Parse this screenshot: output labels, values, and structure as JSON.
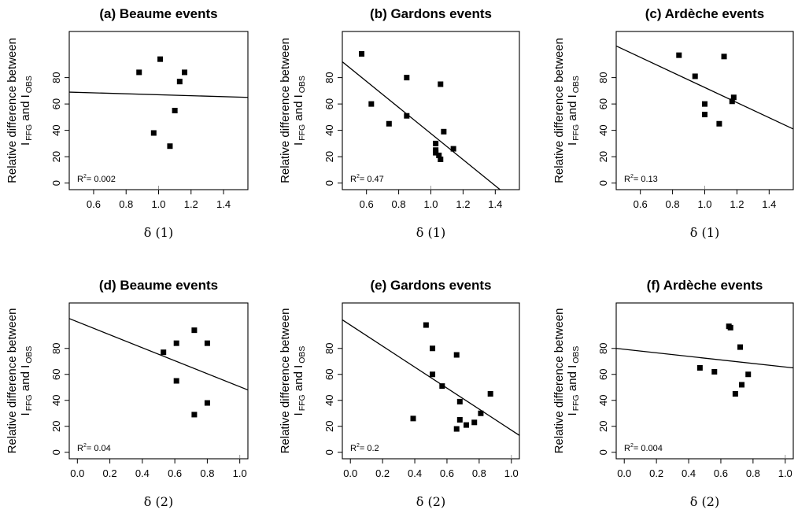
{
  "chart_data": [
    {
      "type": "scatter",
      "title": "(a) Beaume events",
      "xlabel": "δ (1)",
      "ylabel_line1": "Relative difference between",
      "ylabel_line2": {
        "I1": "I",
        "s1": "FFG",
        "and": "and",
        "I2": "I",
        "s2": "OBS"
      },
      "xlim": [
        0.45,
        1.55
      ],
      "ylim": [
        -5,
        115
      ],
      "xticks": [
        "0.6",
        "0.8",
        "1.0",
        "1.2",
        "1.4"
      ],
      "yticks": [
        "0",
        "20",
        "40",
        "60",
        "80"
      ],
      "points": [
        [
          0.88,
          84
        ],
        [
          1.01,
          94
        ],
        [
          0.97,
          38
        ],
        [
          1.07,
          28
        ],
        [
          1.1,
          55
        ],
        [
          1.13,
          77
        ],
        [
          1.16,
          84
        ]
      ],
      "fit": {
        "x": [
          0.45,
          1.55
        ],
        "y": [
          69,
          65
        ]
      },
      "r2": "= 0.002",
      "r2_label": "R",
      "r2_sup": "2",
      "tick_marker_x": 1.0
    },
    {
      "type": "scatter",
      "title": "(b) Gardons events",
      "xlabel": "δ (1)",
      "ylabel_line1": "Relative difference between",
      "ylabel_line2": {
        "I1": "I",
        "s1": "FFG",
        "and": "and",
        "I2": "I",
        "s2": "OBS"
      },
      "xlim": [
        0.45,
        1.55
      ],
      "ylim": [
        -5,
        115
      ],
      "xticks": [
        "0.6",
        "0.8",
        "1.0",
        "1.2",
        "1.4"
      ],
      "yticks": [
        "0",
        "20",
        "40",
        "60",
        "80"
      ],
      "points": [
        [
          0.57,
          98
        ],
        [
          0.63,
          60
        ],
        [
          0.74,
          45
        ],
        [
          0.85,
          80
        ],
        [
          0.85,
          51
        ],
        [
          1.03,
          30
        ],
        [
          1.03,
          25
        ],
        [
          1.03,
          23
        ],
        [
          1.05,
          21
        ],
        [
          1.06,
          75
        ],
        [
          1.06,
          18
        ],
        [
          1.08,
          39
        ],
        [
          1.14,
          26
        ]
      ],
      "fit": {
        "x": [
          0.45,
          1.43
        ],
        "y": [
          92,
          -5
        ]
      },
      "r2": "= 0.47",
      "r2_label": "R",
      "r2_sup": "2",
      "tick_marker_x": 1.0
    },
    {
      "type": "scatter",
      "title": "(c) Ardèche events",
      "xlabel": "δ (1)",
      "ylabel_line1": "Relative difference between",
      "ylabel_line2": {
        "I1": "I",
        "s1": "FFG",
        "and": "and",
        "I2": "I",
        "s2": "OBS"
      },
      "xlim": [
        0.45,
        1.55
      ],
      "ylim": [
        -5,
        115
      ],
      "xticks": [
        "0.6",
        "0.8",
        "1.0",
        "1.2",
        "1.4"
      ],
      "yticks": [
        "0",
        "20",
        "40",
        "60",
        "80"
      ],
      "points": [
        [
          0.84,
          97
        ],
        [
          0.94,
          81
        ],
        [
          1.0,
          60
        ],
        [
          1.0,
          52
        ],
        [
          1.09,
          45
        ],
        [
          1.12,
          96
        ],
        [
          1.17,
          62
        ],
        [
          1.18,
          65
        ]
      ],
      "fit": {
        "x": [
          0.45,
          1.55
        ],
        "y": [
          104,
          41
        ]
      },
      "r2": "= 0.13",
      "r2_label": "R",
      "r2_sup": "2",
      "tick_marker_x": 1.0
    },
    {
      "type": "scatter",
      "title": "(d) Beaume events",
      "xlabel": "δ (2)",
      "ylabel_line1": "Relative difference between",
      "ylabel_line2": {
        "I1": "I",
        "s1": "FFG",
        "and": "and",
        "I2": "I",
        "s2": "OBS"
      },
      "xlim": [
        -0.05,
        1.05
      ],
      "ylim": [
        -5,
        115
      ],
      "xticks": [
        "0.0",
        "0.2",
        "0.4",
        "0.6",
        "0.8",
        "1.0"
      ],
      "yticks": [
        "0",
        "20",
        "40",
        "60",
        "80"
      ],
      "points": [
        [
          0.53,
          77
        ],
        [
          0.61,
          84
        ],
        [
          0.61,
          55
        ],
        [
          0.72,
          94
        ],
        [
          0.72,
          29
        ],
        [
          0.8,
          84
        ],
        [
          0.8,
          38
        ]
      ],
      "fit": {
        "x": [
          -0.05,
          1.05
        ],
        "y": [
          103,
          48
        ]
      },
      "r2": "= 0.04",
      "r2_label": "R",
      "r2_sup": "2",
      "tick_marker_x": 1.0
    },
    {
      "type": "scatter",
      "title": "(e) Gardons events",
      "xlabel": "δ (2)",
      "ylabel_line1": "Relative difference between",
      "ylabel_line2": {
        "I1": "I",
        "s1": "FFG",
        "and": "and",
        "I2": "I",
        "s2": "OBS"
      },
      "xlim": [
        -0.05,
        1.05
      ],
      "ylim": [
        -5,
        115
      ],
      "xticks": [
        "0.0",
        "0.2",
        "0.4",
        "0.6",
        "0.8",
        "1.0"
      ],
      "yticks": [
        "0",
        "20",
        "40",
        "60",
        "80"
      ],
      "points": [
        [
          0.39,
          26
        ],
        [
          0.47,
          98
        ],
        [
          0.51,
          80
        ],
        [
          0.51,
          60
        ],
        [
          0.57,
          51
        ],
        [
          0.66,
          75
        ],
        [
          0.66,
          18
        ],
        [
          0.68,
          39
        ],
        [
          0.68,
          25
        ],
        [
          0.72,
          21
        ],
        [
          0.77,
          23
        ],
        [
          0.81,
          30
        ],
        [
          0.87,
          45
        ]
      ],
      "fit": {
        "x": [
          -0.05,
          1.05
        ],
        "y": [
          102,
          13
        ]
      },
      "r2": "= 0.2",
      "r2_label": "R",
      "r2_sup": "2",
      "tick_marker_x": 1.0
    },
    {
      "type": "scatter",
      "title": "(f) Ardèche events",
      "xlabel": "δ (2)",
      "ylabel_line1": "Relative difference between",
      "ylabel_line2": {
        "I1": "I",
        "s1": "FFG",
        "and": "and",
        "I2": "I",
        "s2": "OBS"
      },
      "xlim": [
        -0.05,
        1.05
      ],
      "ylim": [
        -5,
        115
      ],
      "xticks": [
        "0.0",
        "0.2",
        "0.4",
        "0.6",
        "0.8",
        "1.0"
      ],
      "yticks": [
        "0",
        "20",
        "40",
        "60",
        "80"
      ],
      "points": [
        [
          0.47,
          65
        ],
        [
          0.56,
          62
        ],
        [
          0.65,
          97
        ],
        [
          0.66,
          96
        ],
        [
          0.69,
          45
        ],
        [
          0.72,
          81
        ],
        [
          0.73,
          52
        ],
        [
          0.77,
          60
        ]
      ],
      "fit": {
        "x": [
          -0.05,
          1.05
        ],
        "y": [
          80,
          65
        ]
      },
      "r2": "= 0.004",
      "r2_label": "R",
      "r2_sup": "2",
      "tick_marker_x": 1.0
    }
  ]
}
